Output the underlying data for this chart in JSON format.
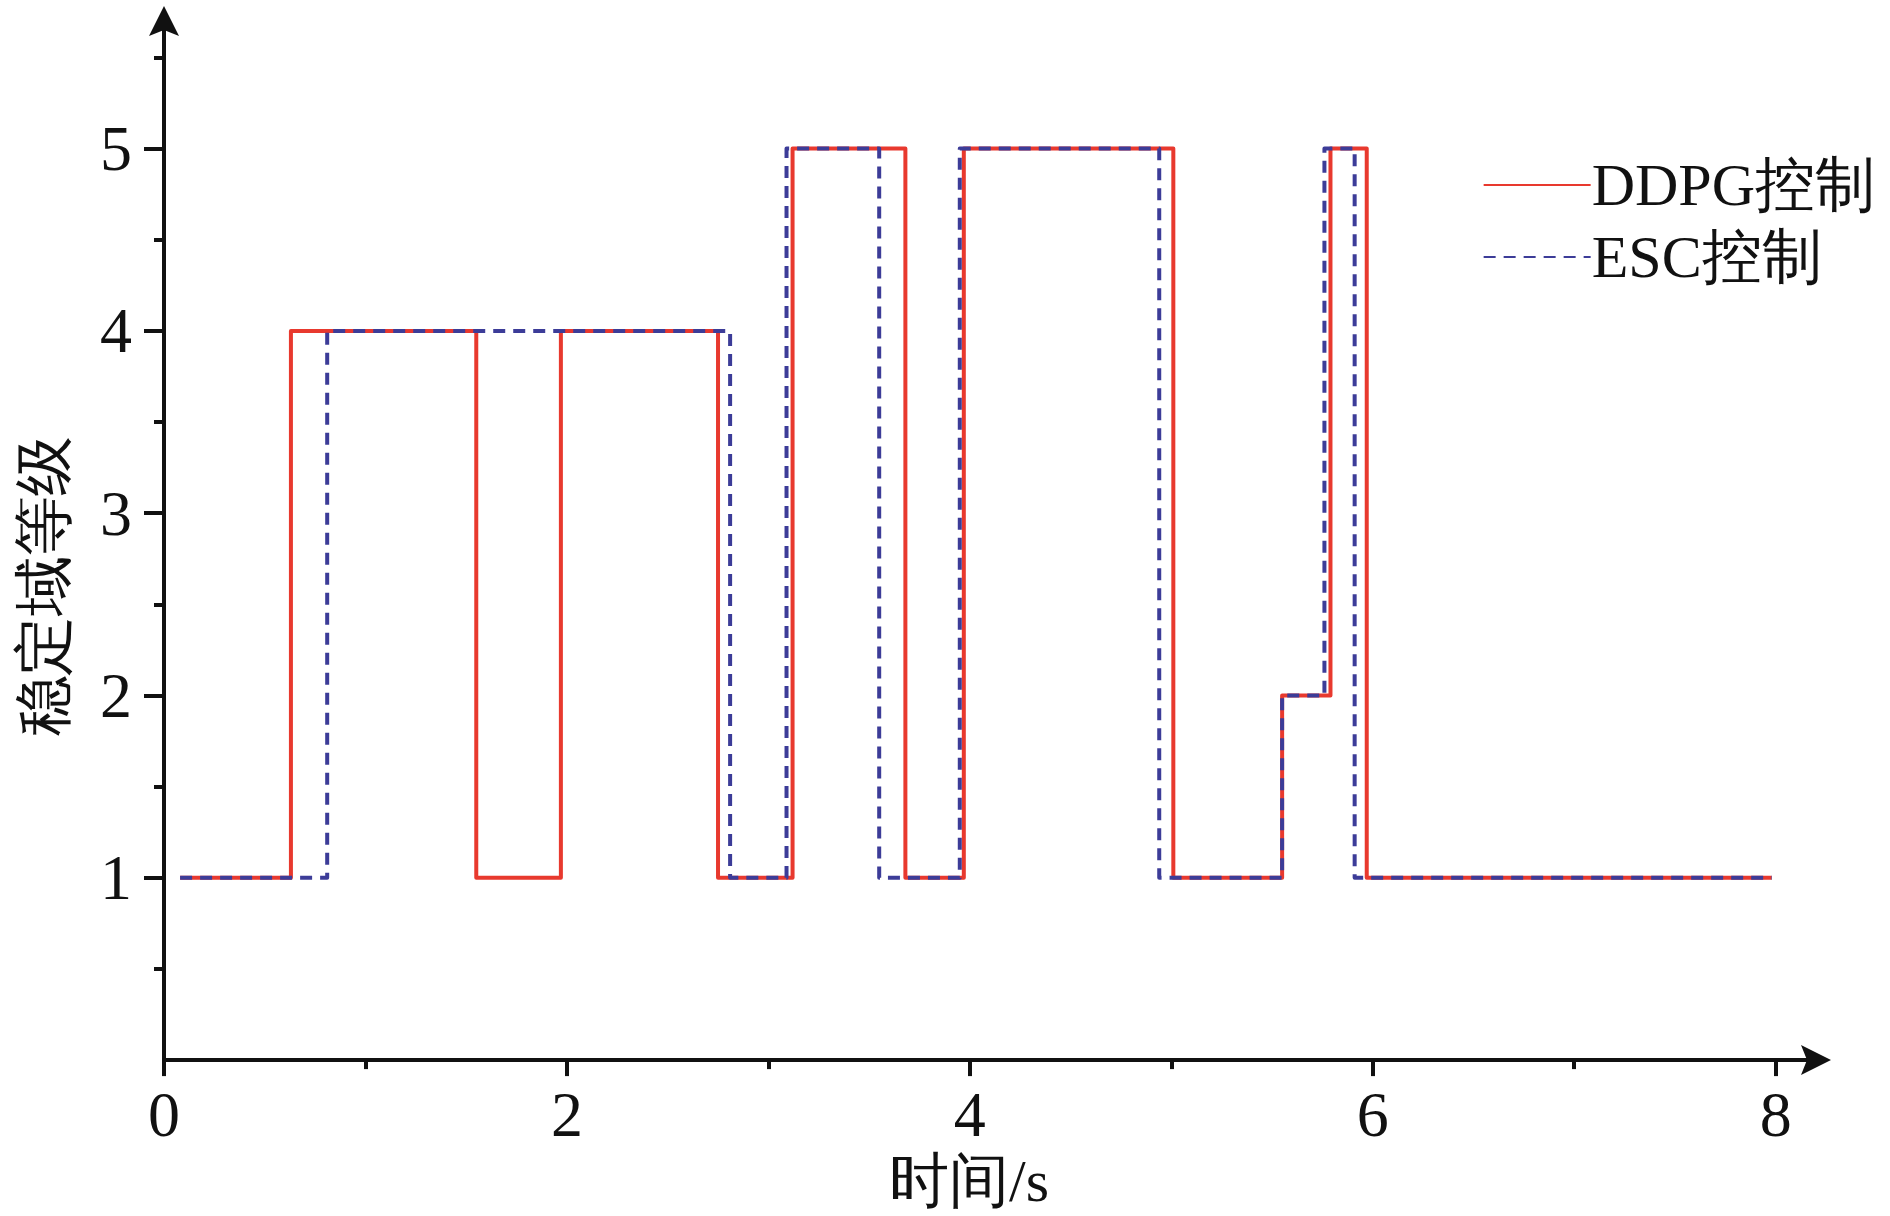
{
  "chart_data": {
    "type": "step",
    "xlabel": "时间/s",
    "ylabel": "稳定域等级",
    "xlim": [
      0,
      8.2
    ],
    "ylim": [
      0,
      5.7
    ],
    "xticks": [
      0,
      {
        "value": 1,
        "label": null
      },
      2,
      {
        "value": 3,
        "label": null
      },
      4,
      {
        "value": 5,
        "label": null
      },
      6,
      {
        "value": 7,
        "label": null
      },
      8
    ],
    "yticks": [
      {
        "value": 0.5,
        "label": null
      },
      1,
      {
        "value": 1.5,
        "label": null
      },
      2,
      {
        "value": 2.5,
        "label": null
      },
      3,
      {
        "value": 3.5,
        "label": null
      },
      4,
      {
        "value": 4.5,
        "label": null
      },
      5,
      {
        "value": 5.5,
        "label": null
      }
    ],
    "grid": false,
    "legend": "top right",
    "marker": "none",
    "series": [
      {
        "name": "DDPG控制",
        "color": "#e8392e",
        "line_style": "solid",
        "x": [
          0.08,
          0.63,
          1.55,
          1.97,
          2.75,
          3.12,
          3.68,
          3.97,
          5.01,
          5.55,
          5.79,
          5.97,
          7.98
        ],
        "values": [
          1,
          4,
          1,
          4,
          1,
          5,
          1,
          5,
          1,
          2,
          5,
          1,
          1
        ]
      },
      {
        "name": "ESC控制",
        "color": "#3c3c98",
        "line_style": "dashed",
        "x": [
          0.08,
          0.81,
          2.81,
          3.09,
          3.55,
          3.95,
          4.94,
          5.55,
          5.76,
          5.91,
          7.98
        ],
        "values": [
          1,
          4,
          1,
          5,
          1,
          5,
          1,
          2,
          5,
          1,
          1
        ]
      }
    ]
  }
}
